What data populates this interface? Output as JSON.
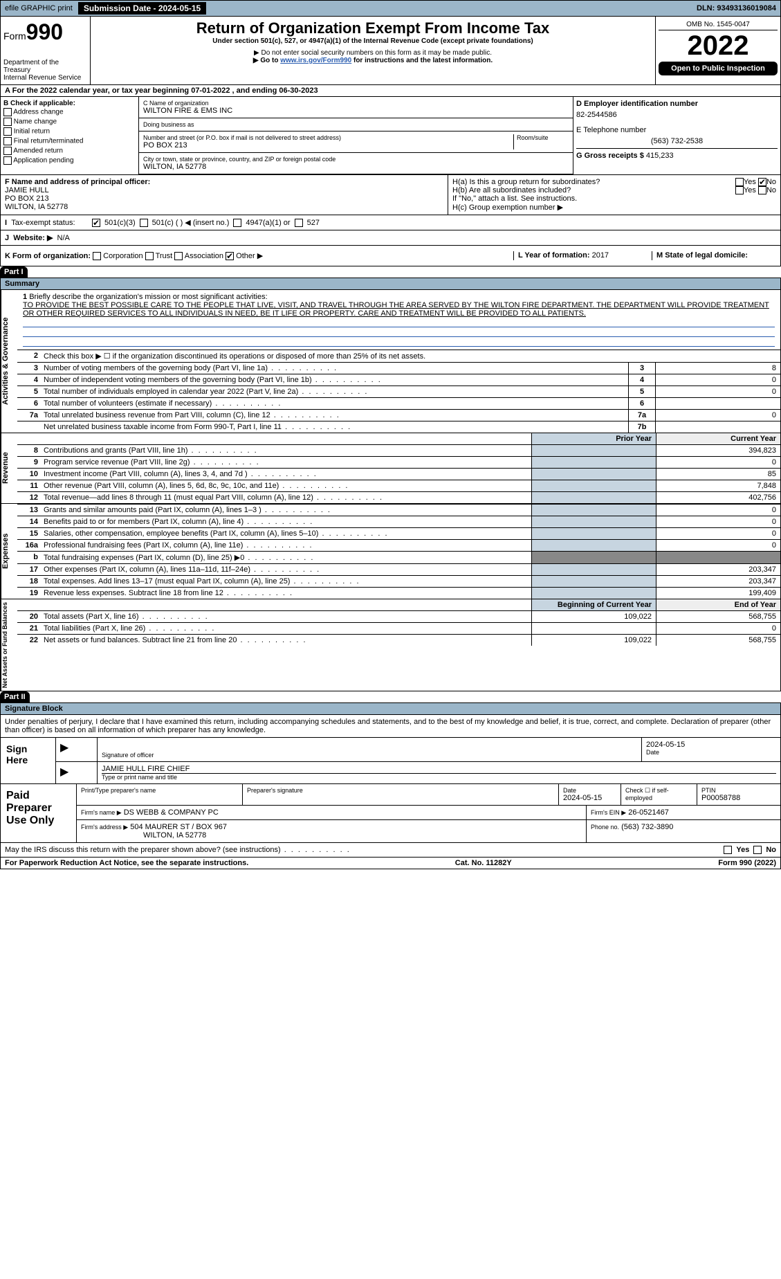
{
  "topbar": {
    "efile": "efile GRAPHIC print",
    "submission_label": "Submission Date - 2024-05-15",
    "dln": "DLN: 93493136019084"
  },
  "header": {
    "form_label": "Form",
    "form_number": "990",
    "dept": "Department of the Treasury",
    "irs": "Internal Revenue Service",
    "title": "Return of Organization Exempt From Income Tax",
    "subtitle": "Under section 501(c), 527, or 4947(a)(1) of the Internal Revenue Code (except private foundations)",
    "note1": "▶ Do not enter social security numbers on this form as it may be made public.",
    "note2_pre": "▶ Go to ",
    "note2_link": "www.irs.gov/Form990",
    "note2_post": " for instructions and the latest information.",
    "omb": "OMB No. 1545-0047",
    "year": "2022",
    "open": "Open to Public Inspection"
  },
  "section_a": {
    "period": "For the 2022 calendar year, or tax year beginning 07-01-2022    , and ending 06-30-2023",
    "b_label": "B Check if applicable:",
    "b_opts": [
      "Address change",
      "Name change",
      "Initial return",
      "Final return/terminated",
      "Amended return",
      "Application pending"
    ],
    "c_label": "C Name of organization",
    "c_name": "WILTON FIRE & EMS INC",
    "dba_label": "Doing business as",
    "dba": "",
    "street_label": "Number and street (or P.O. box if mail is not delivered to street address)",
    "room_label": "Room/suite",
    "street": "PO BOX 213",
    "city_label": "City or town, state or province, country, and ZIP or foreign postal code",
    "city": "WILTON, IA  52778",
    "d_label": "D Employer identification number",
    "d_val": "82-2544586",
    "e_label": "E Telephone number",
    "e_val": "(563) 732-2538",
    "g_label": "G Gross receipts $",
    "g_val": "415,233",
    "f_label": "F  Name and address of principal officer:",
    "f_name": "JAMIE HULL",
    "f_addr1": "PO BOX 213",
    "f_addr2": "WILTON, IA  52778",
    "h_a": "H(a)  Is this a group return for subordinates?",
    "h_b": "H(b)  Are all subordinates included?",
    "h_b_note": "If \"No,\" attach a list. See instructions.",
    "h_c": "H(c)  Group exemption number ▶",
    "yes": "Yes",
    "no": "No"
  },
  "tax_status": {
    "label": "Tax-exempt status:",
    "opt1": "501(c)(3)",
    "opt2": "501(c) (   ) ◀ (insert no.)",
    "opt3": "4947(a)(1) or",
    "opt4": "527"
  },
  "website": {
    "label": "Website: ▶",
    "val": "N/A"
  },
  "k_row": {
    "k_label": "K Form of organization:",
    "opts": [
      "Corporation",
      "Trust",
      "Association",
      "Other ▶"
    ],
    "l_label": "L Year of formation:",
    "l_val": "2017",
    "m_label": "M State of legal domicile:",
    "m_val": ""
  },
  "part1": {
    "hdr": "Part I",
    "title": "Summary",
    "q1": "Briefly describe the organization's mission or most significant activities:",
    "mission": "TO PROVIDE THE BEST POSSIBLE CARE TO THE PEOPLE THAT LIVE, VISIT, AND TRAVEL THROUGH THE AREA SERVED BY THE WILTON FIRE DEPARTMENT. THE DEPARTMENT WILL PROVIDE TREATMENT OR OTHER REQUIRED SERVICES TO ALL INDIVIDUALS IN NEED, BE IT LIFE OR PROPERTY. CARE AND TREATMENT WILL BE PROVIDED TO ALL PATIENTS.",
    "q2": "Check this box ▶ ☐  if the organization discontinued its operations or disposed of more than 25% of its net assets.",
    "lines_small": [
      {
        "n": "3",
        "t": "Number of voting members of the governing body (Part VI, line 1a)",
        "c": "3",
        "v": "8"
      },
      {
        "n": "4",
        "t": "Number of independent voting members of the governing body (Part VI, line 1b)",
        "c": "4",
        "v": "0"
      },
      {
        "n": "5",
        "t": "Total number of individuals employed in calendar year 2022 (Part V, line 2a)",
        "c": "5",
        "v": "0"
      },
      {
        "n": "6",
        "t": "Total number of volunteers (estimate if necessary)",
        "c": "6",
        "v": ""
      },
      {
        "n": "7a",
        "t": "Total unrelated business revenue from Part VIII, column (C), line 12",
        "c": "7a",
        "v": "0"
      },
      {
        "n": "",
        "t": "Net unrelated business taxable income from Form 990-T, Part I, line 11",
        "c": "7b",
        "v": ""
      }
    ],
    "col_prior": "Prior Year",
    "col_curr": "Current Year",
    "revenue": [
      {
        "n": "8",
        "t": "Contributions and grants (Part VIII, line 1h)",
        "p": "",
        "c": "394,823"
      },
      {
        "n": "9",
        "t": "Program service revenue (Part VIII, line 2g)",
        "p": "",
        "c": "0"
      },
      {
        "n": "10",
        "t": "Investment income (Part VIII, column (A), lines 3, 4, and 7d )",
        "p": "",
        "c": "85"
      },
      {
        "n": "11",
        "t": "Other revenue (Part VIII, column (A), lines 5, 6d, 8c, 9c, 10c, and 11e)",
        "p": "",
        "c": "7,848"
      },
      {
        "n": "12",
        "t": "Total revenue—add lines 8 through 11 (must equal Part VIII, column (A), line 12)",
        "p": "",
        "c": "402,756"
      }
    ],
    "expenses": [
      {
        "n": "13",
        "t": "Grants and similar amounts paid (Part IX, column (A), lines 1–3 )",
        "p": "",
        "c": "0"
      },
      {
        "n": "14",
        "t": "Benefits paid to or for members (Part IX, column (A), line 4)",
        "p": "",
        "c": "0"
      },
      {
        "n": "15",
        "t": "Salaries, other compensation, employee benefits (Part IX, column (A), lines 5–10)",
        "p": "",
        "c": "0"
      },
      {
        "n": "16a",
        "t": "Professional fundraising fees (Part IX, column (A), line 11e)",
        "p": "",
        "c": "0"
      },
      {
        "n": "b",
        "t": "Total fundraising expenses (Part IX, column (D), line 25) ▶0",
        "p": "—",
        "c": "—"
      },
      {
        "n": "17",
        "t": "Other expenses (Part IX, column (A), lines 11a–11d, 11f–24e)",
        "p": "",
        "c": "203,347"
      },
      {
        "n": "18",
        "t": "Total expenses. Add lines 13–17 (must equal Part IX, column (A), line 25)",
        "p": "",
        "c": "203,347"
      },
      {
        "n": "19",
        "t": "Revenue less expenses. Subtract line 18 from line 12",
        "p": "",
        "c": "199,409"
      }
    ],
    "col_begin": "Beginning of Current Year",
    "col_end": "End of Year",
    "net": [
      {
        "n": "20",
        "t": "Total assets (Part X, line 16)",
        "p": "109,022",
        "c": "568,755"
      },
      {
        "n": "21",
        "t": "Total liabilities (Part X, line 26)",
        "p": "",
        "c": "0"
      },
      {
        "n": "22",
        "t": "Net assets or fund balances. Subtract line 21 from line 20",
        "p": "109,022",
        "c": "568,755"
      }
    ],
    "side_gov": "Activities & Governance",
    "side_rev": "Revenue",
    "side_exp": "Expenses",
    "side_net": "Net Assets or Fund Balances"
  },
  "part2": {
    "hdr": "Part II",
    "title": "Signature Block",
    "decl": "Under penalties of perjury, I declare that I have examined this return, including accompanying schedules and statements, and to the best of my knowledge and belief, it is true, correct, and complete. Declaration of preparer (other than officer) is based on all information of which preparer has any knowledge.",
    "sign_here": "Sign Here",
    "sig_officer": "Signature of officer",
    "sig_date": "2024-05-15",
    "date_lbl": "Date",
    "officer_name": "JAMIE HULL FIRE CHIEF",
    "type_name": "Type or print name and title",
    "paid": "Paid Preparer Use Only",
    "prep_name_lbl": "Print/Type preparer's name",
    "prep_sig_lbl": "Preparer's signature",
    "prep_date": "2024-05-15",
    "check_self": "Check ☐ if self-employed",
    "ptin_lbl": "PTIN",
    "ptin": "P00058788",
    "firm_name_lbl": "Firm's name    ▶",
    "firm_name": "DS WEBB & COMPANY PC",
    "firm_ein_lbl": "Firm's EIN ▶",
    "firm_ein": "26-0521467",
    "firm_addr_lbl": "Firm's address ▶",
    "firm_addr1": "504 MAURER ST / BOX 967",
    "firm_addr2": "WILTON, IA  52778",
    "phone_lbl": "Phone no.",
    "phone": "(563) 732-3890",
    "may_irs": "May the IRS discuss this return with the preparer shown above? (see instructions)"
  },
  "footer": {
    "left": "For Paperwork Reduction Act Notice, see the separate instructions.",
    "mid": "Cat. No. 11282Y",
    "right": "Form 990 (2022)"
  },
  "colors": {
    "bar": "#9bb6c9",
    "link": "#2a5db0",
    "shade": "#c7d5e0"
  }
}
